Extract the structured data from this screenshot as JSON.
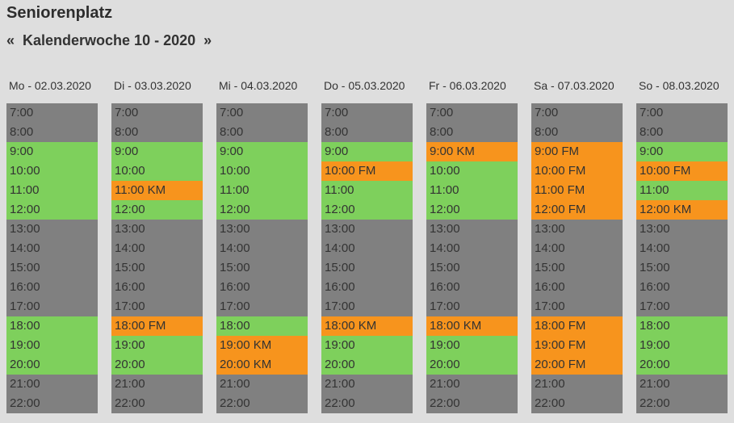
{
  "page": {
    "title": "Seniorenplatz"
  },
  "week_nav": {
    "prev_icon": "«",
    "label": "Kalenderwoche 10 - 2020",
    "next_icon": "»"
  },
  "colors": {
    "background": "#dedede",
    "text": "#333333",
    "free": "#7ed05c",
    "booked": "#f7941d",
    "unavailable": "#808080"
  },
  "days": [
    {
      "label": "Mo - 02.03.2020",
      "slots": [
        {
          "label": "7:00",
          "state": "unavailable"
        },
        {
          "label": "8:00",
          "state": "unavailable"
        },
        {
          "label": "9:00",
          "state": "free"
        },
        {
          "label": "10:00",
          "state": "free"
        },
        {
          "label": "11:00",
          "state": "free"
        },
        {
          "label": "12:00",
          "state": "free"
        },
        {
          "label": "13:00",
          "state": "unavailable"
        },
        {
          "label": "14:00",
          "state": "unavailable"
        },
        {
          "label": "15:00",
          "state": "unavailable"
        },
        {
          "label": "16:00",
          "state": "unavailable"
        },
        {
          "label": "17:00",
          "state": "unavailable"
        },
        {
          "label": "18:00",
          "state": "free"
        },
        {
          "label": "19:00",
          "state": "free"
        },
        {
          "label": "20:00",
          "state": "free"
        },
        {
          "label": "21:00",
          "state": "unavailable"
        },
        {
          "label": "22:00",
          "state": "unavailable"
        }
      ]
    },
    {
      "label": "Di - 03.03.2020",
      "slots": [
        {
          "label": "7:00",
          "state": "unavailable"
        },
        {
          "label": "8:00",
          "state": "unavailable"
        },
        {
          "label": "9:00",
          "state": "free"
        },
        {
          "label": "10:00",
          "state": "free"
        },
        {
          "label": "11:00 KM",
          "state": "booked"
        },
        {
          "label": "12:00",
          "state": "free"
        },
        {
          "label": "13:00",
          "state": "unavailable"
        },
        {
          "label": "14:00",
          "state": "unavailable"
        },
        {
          "label": "15:00",
          "state": "unavailable"
        },
        {
          "label": "16:00",
          "state": "unavailable"
        },
        {
          "label": "17:00",
          "state": "unavailable"
        },
        {
          "label": "18:00 FM",
          "state": "booked"
        },
        {
          "label": "19:00",
          "state": "free"
        },
        {
          "label": "20:00",
          "state": "free"
        },
        {
          "label": "21:00",
          "state": "unavailable"
        },
        {
          "label": "22:00",
          "state": "unavailable"
        }
      ]
    },
    {
      "label": "Mi - 04.03.2020",
      "slots": [
        {
          "label": "7:00",
          "state": "unavailable"
        },
        {
          "label": "8:00",
          "state": "unavailable"
        },
        {
          "label": "9:00",
          "state": "free"
        },
        {
          "label": "10:00",
          "state": "free"
        },
        {
          "label": "11:00",
          "state": "free"
        },
        {
          "label": "12:00",
          "state": "free"
        },
        {
          "label": "13:00",
          "state": "unavailable"
        },
        {
          "label": "14:00",
          "state": "unavailable"
        },
        {
          "label": "15:00",
          "state": "unavailable"
        },
        {
          "label": "16:00",
          "state": "unavailable"
        },
        {
          "label": "17:00",
          "state": "unavailable"
        },
        {
          "label": "18:00",
          "state": "free"
        },
        {
          "label": "19:00 KM",
          "state": "booked"
        },
        {
          "label": "20:00 KM",
          "state": "booked"
        },
        {
          "label": "21:00",
          "state": "unavailable"
        },
        {
          "label": "22:00",
          "state": "unavailable"
        }
      ]
    },
    {
      "label": "Do - 05.03.2020",
      "slots": [
        {
          "label": "7:00",
          "state": "unavailable"
        },
        {
          "label": "8:00",
          "state": "unavailable"
        },
        {
          "label": "9:00",
          "state": "free"
        },
        {
          "label": "10:00 FM",
          "state": "booked"
        },
        {
          "label": "11:00",
          "state": "free"
        },
        {
          "label": "12:00",
          "state": "free"
        },
        {
          "label": "13:00",
          "state": "unavailable"
        },
        {
          "label": "14:00",
          "state": "unavailable"
        },
        {
          "label": "15:00",
          "state": "unavailable"
        },
        {
          "label": "16:00",
          "state": "unavailable"
        },
        {
          "label": "17:00",
          "state": "unavailable"
        },
        {
          "label": "18:00 KM",
          "state": "booked"
        },
        {
          "label": "19:00",
          "state": "free"
        },
        {
          "label": "20:00",
          "state": "free"
        },
        {
          "label": "21:00",
          "state": "unavailable"
        },
        {
          "label": "22:00",
          "state": "unavailable"
        }
      ]
    },
    {
      "label": "Fr - 06.03.2020",
      "slots": [
        {
          "label": "7:00",
          "state": "unavailable"
        },
        {
          "label": "8:00",
          "state": "unavailable"
        },
        {
          "label": "9:00 KM",
          "state": "booked"
        },
        {
          "label": "10:00",
          "state": "free"
        },
        {
          "label": "11:00",
          "state": "free"
        },
        {
          "label": "12:00",
          "state": "free"
        },
        {
          "label": "13:00",
          "state": "unavailable"
        },
        {
          "label": "14:00",
          "state": "unavailable"
        },
        {
          "label": "15:00",
          "state": "unavailable"
        },
        {
          "label": "16:00",
          "state": "unavailable"
        },
        {
          "label": "17:00",
          "state": "unavailable"
        },
        {
          "label": "18:00 KM",
          "state": "booked"
        },
        {
          "label": "19:00",
          "state": "free"
        },
        {
          "label": "20:00",
          "state": "free"
        },
        {
          "label": "21:00",
          "state": "unavailable"
        },
        {
          "label": "22:00",
          "state": "unavailable"
        }
      ]
    },
    {
      "label": "Sa - 07.03.2020",
      "slots": [
        {
          "label": "7:00",
          "state": "unavailable"
        },
        {
          "label": "8:00",
          "state": "unavailable"
        },
        {
          "label": "9:00 FM",
          "state": "booked"
        },
        {
          "label": "10:00 FM",
          "state": "booked"
        },
        {
          "label": "11:00 FM",
          "state": "booked"
        },
        {
          "label": "12:00 FM",
          "state": "booked"
        },
        {
          "label": "13:00",
          "state": "unavailable"
        },
        {
          "label": "14:00",
          "state": "unavailable"
        },
        {
          "label": "15:00",
          "state": "unavailable"
        },
        {
          "label": "16:00",
          "state": "unavailable"
        },
        {
          "label": "17:00",
          "state": "unavailable"
        },
        {
          "label": "18:00 FM",
          "state": "booked"
        },
        {
          "label": "19:00 FM",
          "state": "booked"
        },
        {
          "label": "20:00 FM",
          "state": "booked"
        },
        {
          "label": "21:00",
          "state": "unavailable"
        },
        {
          "label": "22:00",
          "state": "unavailable"
        }
      ]
    },
    {
      "label": "So - 08.03.2020",
      "slots": [
        {
          "label": "7:00",
          "state": "unavailable"
        },
        {
          "label": "8:00",
          "state": "unavailable"
        },
        {
          "label": "9:00",
          "state": "free"
        },
        {
          "label": "10:00 FM",
          "state": "booked"
        },
        {
          "label": "11:00",
          "state": "free"
        },
        {
          "label": "12:00 KM",
          "state": "booked"
        },
        {
          "label": "13:00",
          "state": "unavailable"
        },
        {
          "label": "14:00",
          "state": "unavailable"
        },
        {
          "label": "15:00",
          "state": "unavailable"
        },
        {
          "label": "16:00",
          "state": "unavailable"
        },
        {
          "label": "17:00",
          "state": "unavailable"
        },
        {
          "label": "18:00",
          "state": "free"
        },
        {
          "label": "19:00",
          "state": "free"
        },
        {
          "label": "20:00",
          "state": "free"
        },
        {
          "label": "21:00",
          "state": "unavailable"
        },
        {
          "label": "22:00",
          "state": "unavailable"
        }
      ]
    }
  ]
}
